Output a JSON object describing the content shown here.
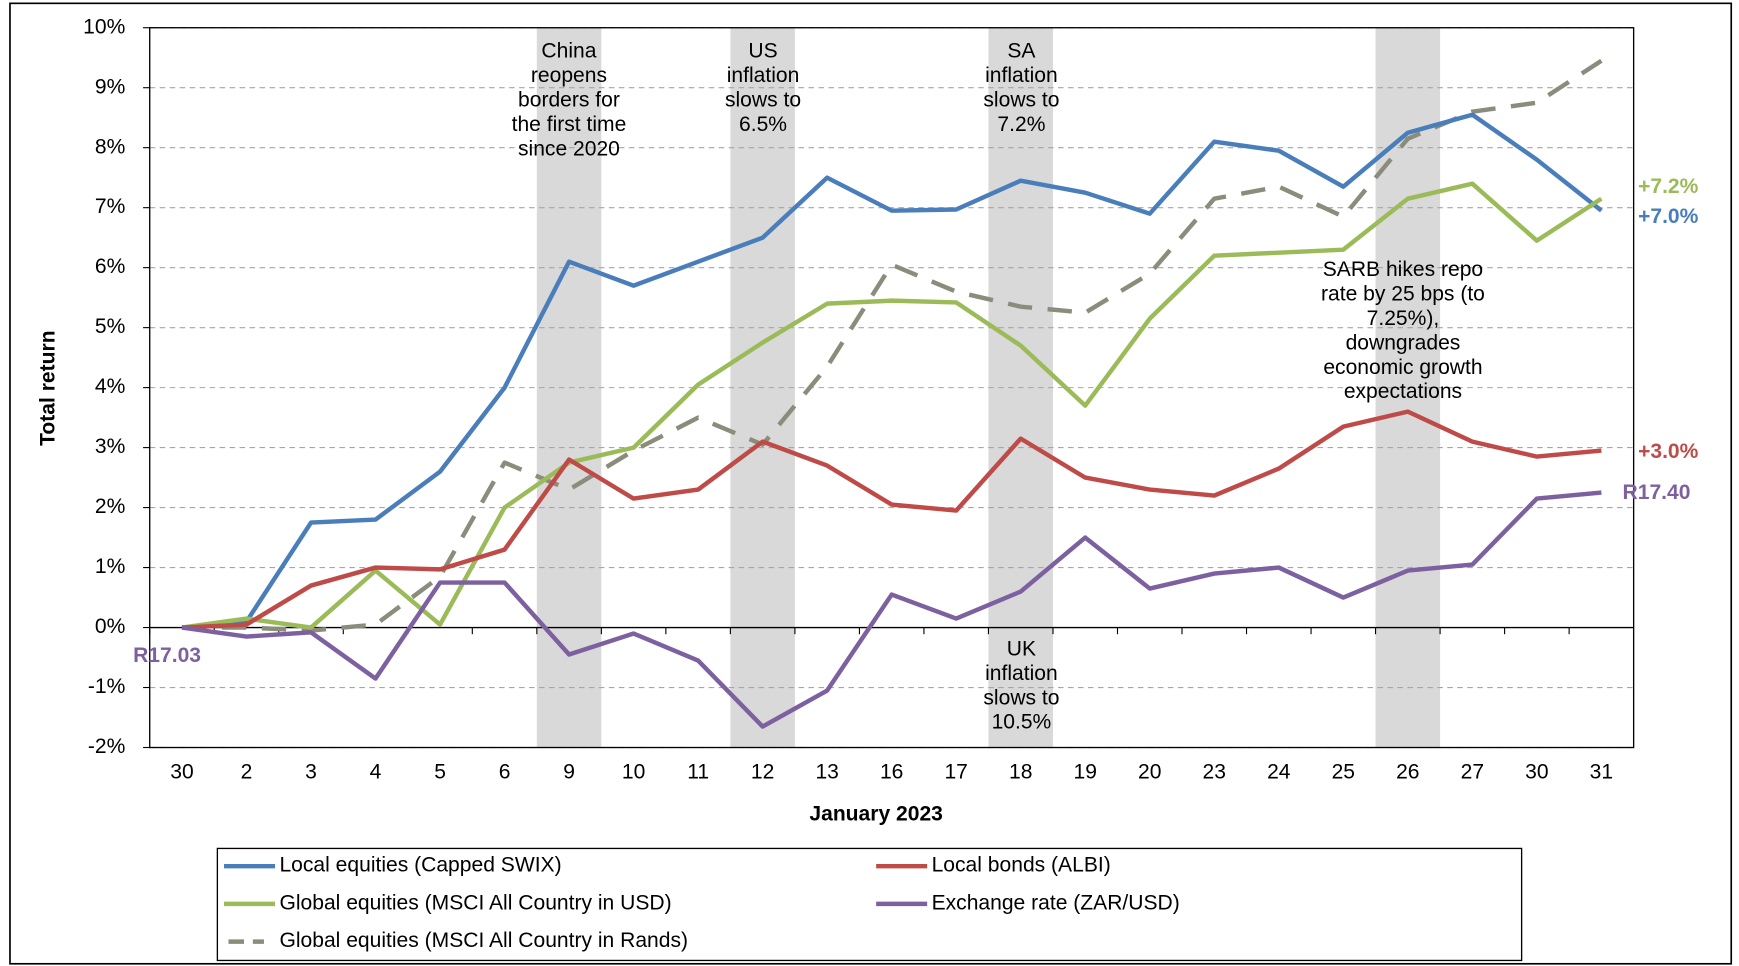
{
  "chart_data": {
    "type": "line",
    "y_label": "Total return",
    "x_label": "January 2023",
    "categories": [
      "30",
      "2",
      "3",
      "4",
      "5",
      "6",
      "9",
      "10",
      "11",
      "12",
      "13",
      "16",
      "17",
      "18",
      "19",
      "20",
      "23",
      "24",
      "25",
      "26",
      "27",
      "30",
      "31"
    ],
    "ylim": [
      -2,
      10
    ],
    "yticks": [
      {
        "value": -2,
        "label": "-2%"
      },
      {
        "value": -1,
        "label": "-1%"
      },
      {
        "value": 0,
        "label": "0%"
      },
      {
        "value": 1,
        "label": "1%"
      },
      {
        "value": 2,
        "label": "2%"
      },
      {
        "value": 3,
        "label": "3%"
      },
      {
        "value": 4,
        "label": "4%"
      },
      {
        "value": 5,
        "label": "5%"
      },
      {
        "value": 6,
        "label": "6%"
      },
      {
        "value": 7,
        "label": "7%"
      },
      {
        "value": 8,
        "label": "8%"
      },
      {
        "value": 9,
        "label": "9%"
      },
      {
        "value": 10,
        "label": "10%"
      }
    ],
    "grid": true,
    "highlight_color": "#d9d9d9",
    "annotations": [
      {
        "category": "9",
        "lines": [
          "China",
          "reopens",
          "borders for",
          "the first time",
          "since 2020"
        ]
      },
      {
        "category": "12",
        "lines": [
          "US",
          "inflation",
          "slows to",
          "6.5%"
        ]
      },
      {
        "category": "18",
        "lines": [
          "SA",
          "inflation",
          "slows to",
          "7.2%"
        ]
      },
      {
        "category": "18",
        "lines": [
          "UK",
          "inflation",
          "slows to",
          "10.5%"
        ]
      },
      {
        "category": "26",
        "lines": [
          "SARB hikes repo",
          "rate by 25 bps (to",
          "7.25%),",
          "downgrades",
          "economic growth",
          "expectations"
        ]
      }
    ],
    "series": [
      {
        "name": "Local equities (Capped SWIX)",
        "color": "#4a7ebb",
        "dashed": false,
        "end_label": "+7.0%",
        "values": [
          0,
          0.1,
          1.75,
          1.8,
          2.6,
          4.0,
          6.1,
          5.7,
          6.1,
          6.5,
          7.5,
          6.95,
          6.97,
          7.45,
          7.25,
          6.9,
          8.1,
          7.95,
          7.35,
          8.25,
          8.55,
          7.8,
          6.95
        ]
      },
      {
        "name": "Local bonds (ALBI)",
        "color": "#be4b48",
        "dashed": false,
        "end_label": "+3.0%",
        "values": [
          0,
          0.05,
          0.7,
          1.0,
          0.97,
          1.3,
          2.8,
          2.15,
          2.3,
          3.1,
          2.7,
          2.05,
          1.95,
          3.15,
          2.5,
          2.3,
          2.2,
          2.65,
          3.35,
          3.6,
          3.1,
          2.85,
          2.95
        ]
      },
      {
        "name": "Global equities (MSCI All Country in USD)",
        "color": "#9bbb59",
        "dashed": false,
        "end_label": "+7.2%",
        "values": [
          0,
          0.15,
          0.0,
          0.95,
          0.05,
          2.0,
          2.75,
          3.0,
          4.05,
          4.75,
          5.4,
          5.45,
          5.42,
          4.7,
          3.7,
          5.15,
          6.2,
          6.25,
          6.3,
          7.15,
          7.4,
          6.45,
          7.15
        ]
      },
      {
        "name": "Exchange rate (ZAR/USD)",
        "color": "#7d60a0",
        "dashed": false,
        "start_label": "R17.03",
        "end_label": "R17.40",
        "values": [
          0,
          -0.15,
          -0.08,
          -0.85,
          0.75,
          0.75,
          -0.45,
          -0.1,
          -0.55,
          -1.65,
          -1.05,
          0.55,
          0.15,
          0.6,
          1.5,
          0.65,
          0.9,
          1.0,
          0.5,
          0.95,
          1.05,
          2.15,
          2.25
        ]
      },
      {
        "name": "Global equities (MSCI All Country in Rands)",
        "color": "#8c8c7c",
        "dashed": true,
        "values": [
          0,
          0.0,
          -0.05,
          0.05,
          0.85,
          2.75,
          2.3,
          2.95,
          3.5,
          3.05,
          4.35,
          6.05,
          5.6,
          5.35,
          5.25,
          5.9,
          7.15,
          7.35,
          6.85,
          8.15,
          8.6,
          8.75,
          9.45
        ]
      }
    ]
  }
}
